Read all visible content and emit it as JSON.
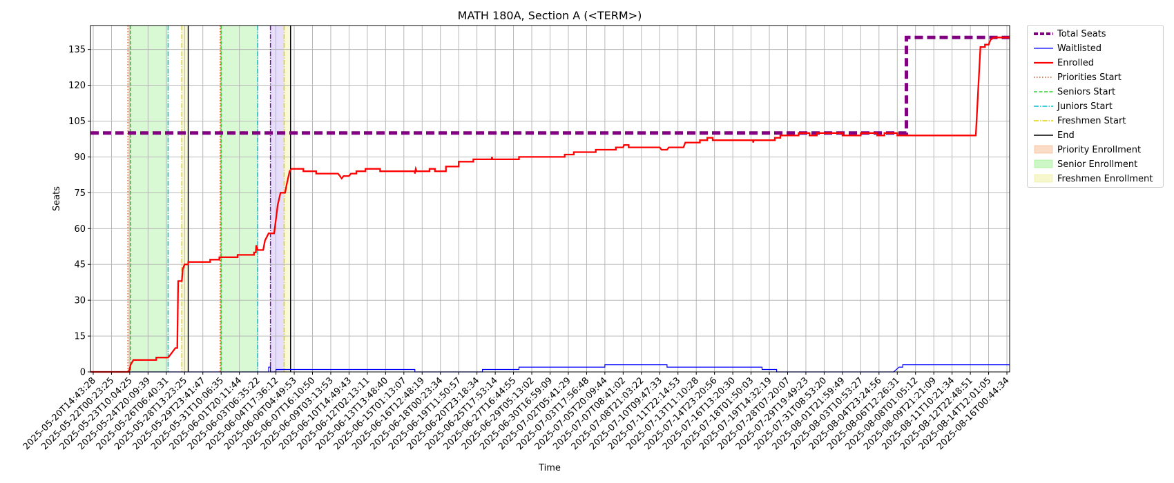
{
  "chart_data": {
    "type": "line",
    "title": "MATH 180A, Section A (<TERM>)",
    "xlabel": "Time",
    "ylabel": "Seats",
    "ylim": [
      0,
      145
    ],
    "yticks": [
      0,
      15,
      30,
      45,
      60,
      75,
      90,
      105,
      120,
      135
    ],
    "grid": true,
    "legend_position": "outside-top-right",
    "x_tick_labels": [
      "2025-05-20T14:43:28",
      "2025-05-22T00:23:25",
      "2025-05-23T10:04:25",
      "2025-05-24T20:09:39",
      "2025-05-26T06:40:31",
      "2025-05-28T13:23:25",
      "2025-05-29T23:41:47",
      "2025-05-31T10:06:35",
      "2025-06-01T20:11:44",
      "2025-06-03T06:35:22",
      "2025-06-04T17:36:12",
      "2025-06-06T04:49:53",
      "2025-06-07T16:10:50",
      "2025-06-09T03:13:53",
      "2025-06-10T14:49:43",
      "2025-06-12T02:13:11",
      "2025-06-13T13:48:40",
      "2025-06-15T01:13:07",
      "2025-06-16T12:48:19",
      "2025-06-18T00:23:34",
      "2025-06-19T11:50:57",
      "2025-06-20T23:18:34",
      "2025-06-25T17:53:14",
      "2025-06-27T16:44:55",
      "2025-06-29T05:13:02",
      "2025-06-30T16:59:09",
      "2025-07-02T05:41:29",
      "2025-07-03T17:56:48",
      "2025-07-05T20:09:44",
      "2025-07-07T08:41:02",
      "2025-07-08T21:03:22",
      "2025-07-10T09:47:33",
      "2025-07-11T22:14:53",
      "2025-07-13T11:10:28",
      "2025-07-14T23:20:56",
      "2025-07-16T13:20:30",
      "2025-07-18T01:50:03",
      "2025-07-19T14:32:19",
      "2025-07-28T07:20:07",
      "2025-07-29T19:49:23",
      "2025-07-31T08:53:20",
      "2025-08-01T21:59:49",
      "2025-08-03T10:53:27",
      "2025-08-04T23:24:56",
      "2025-08-06T12:26:31",
      "2025-08-08T01:05:12",
      "2025-08-09T21:21:09",
      "2025-08-11T10:21:34",
      "2025-08-12T22:48:51",
      "2025-08-14T12:01:05",
      "2025-08-16T00:44:34"
    ],
    "x_range_ticks": [
      -0.15,
      50.15
    ],
    "series": [
      {
        "name": "Total Seats",
        "color": "#800080",
        "style": "dashed-thick",
        "points": [
          [
            -0.15,
            100
          ],
          [
            44.5,
            100
          ],
          [
            44.5,
            140
          ],
          [
            50.15,
            140
          ]
        ]
      },
      {
        "name": "Waitlisted",
        "color": "#0000ff",
        "style": "solid-thin",
        "points": [
          [
            -0.15,
            0
          ],
          [
            9.6,
            0
          ],
          [
            9.6,
            2
          ],
          [
            9.7,
            2
          ],
          [
            9.7,
            0
          ],
          [
            10.0,
            0
          ],
          [
            10.0,
            1
          ],
          [
            17.6,
            1
          ],
          [
            17.6,
            0
          ],
          [
            21.3,
            0
          ],
          [
            21.3,
            1
          ],
          [
            23.3,
            1
          ],
          [
            23.3,
            2
          ],
          [
            28.0,
            2
          ],
          [
            28.0,
            3
          ],
          [
            31.4,
            3
          ],
          [
            31.4,
            2
          ],
          [
            36.6,
            2
          ],
          [
            36.6,
            1
          ],
          [
            37.4,
            1
          ],
          [
            37.4,
            0
          ],
          [
            43.8,
            0
          ],
          [
            44.1,
            2
          ],
          [
            44.3,
            2
          ],
          [
            44.3,
            3
          ],
          [
            50.15,
            3
          ]
        ]
      },
      {
        "name": "Enrolled",
        "color": "#ff0000",
        "style": "solid-thick",
        "points": [
          [
            -0.15,
            0
          ],
          [
            1.95,
            0
          ],
          [
            2.05,
            3
          ],
          [
            2.2,
            5
          ],
          [
            3.45,
            5
          ],
          [
            3.45,
            6
          ],
          [
            4.1,
            6
          ],
          [
            4.3,
            8
          ],
          [
            4.5,
            10
          ],
          [
            4.6,
            10
          ],
          [
            4.65,
            38
          ],
          [
            4.85,
            38
          ],
          [
            4.9,
            43
          ],
          [
            5.0,
            45
          ],
          [
            5.2,
            45
          ],
          [
            5.2,
            46
          ],
          [
            6.4,
            46
          ],
          [
            6.4,
            47
          ],
          [
            6.9,
            47
          ],
          [
            6.9,
            48
          ],
          [
            7.9,
            48
          ],
          [
            7.9,
            49
          ],
          [
            8.8,
            49
          ],
          [
            8.8,
            50
          ],
          [
            8.9,
            50
          ],
          [
            8.92,
            53
          ],
          [
            9.0,
            51
          ],
          [
            9.3,
            51
          ],
          [
            9.4,
            55
          ],
          [
            9.6,
            58
          ],
          [
            9.9,
            58
          ],
          [
            9.95,
            61
          ],
          [
            10.1,
            70
          ],
          [
            10.25,
            75
          ],
          [
            10.5,
            75
          ],
          [
            10.6,
            79
          ],
          [
            10.75,
            84
          ],
          [
            10.85,
            85
          ],
          [
            11.5,
            85
          ],
          [
            11.5,
            84
          ],
          [
            12.2,
            84
          ],
          [
            12.2,
            83
          ],
          [
            13.4,
            83
          ],
          [
            13.5,
            82
          ],
          [
            13.6,
            81
          ],
          [
            13.7,
            82
          ],
          [
            14.0,
            82
          ],
          [
            14.1,
            83
          ],
          [
            14.4,
            83
          ],
          [
            14.4,
            84
          ],
          [
            14.9,
            84
          ],
          [
            14.9,
            85
          ],
          [
            15.7,
            85
          ],
          [
            15.7,
            84
          ],
          [
            17.6,
            84
          ],
          [
            17.6,
            83
          ],
          [
            17.65,
            85
          ],
          [
            17.7,
            84
          ],
          [
            18.4,
            84
          ],
          [
            18.4,
            85
          ],
          [
            18.7,
            85
          ],
          [
            18.7,
            84
          ],
          [
            19.3,
            84
          ],
          [
            19.3,
            86
          ],
          [
            20.0,
            86
          ],
          [
            20.0,
            88
          ],
          [
            20.8,
            88
          ],
          [
            20.8,
            89
          ],
          [
            21.8,
            89
          ],
          [
            21.82,
            90
          ],
          [
            21.85,
            89
          ],
          [
            23.3,
            89
          ],
          [
            23.3,
            90
          ],
          [
            25.8,
            90
          ],
          [
            25.8,
            91
          ],
          [
            26.3,
            91
          ],
          [
            26.3,
            92
          ],
          [
            27.5,
            92
          ],
          [
            27.5,
            93
          ],
          [
            28.6,
            93
          ],
          [
            28.6,
            94
          ],
          [
            29.0,
            94
          ],
          [
            29.05,
            95
          ],
          [
            29.3,
            95
          ],
          [
            29.3,
            94
          ],
          [
            31.0,
            94
          ],
          [
            31.1,
            93
          ],
          [
            31.4,
            93
          ],
          [
            31.5,
            94
          ],
          [
            32.3,
            94
          ],
          [
            32.4,
            96
          ],
          [
            33.2,
            96
          ],
          [
            33.2,
            97
          ],
          [
            33.6,
            97
          ],
          [
            33.6,
            98
          ],
          [
            33.9,
            98
          ],
          [
            33.9,
            97
          ],
          [
            36.1,
            97
          ],
          [
            36.12,
            96
          ],
          [
            36.15,
            97
          ],
          [
            37.3,
            97
          ],
          [
            37.3,
            98
          ],
          [
            37.6,
            98
          ],
          [
            37.6,
            99
          ],
          [
            38.6,
            99
          ],
          [
            38.6,
            100
          ],
          [
            39.2,
            100
          ],
          [
            39.2,
            99
          ],
          [
            39.6,
            99
          ],
          [
            39.6,
            100
          ],
          [
            41.0,
            100
          ],
          [
            41.0,
            99
          ],
          [
            42.0,
            99
          ],
          [
            42.0,
            100
          ],
          [
            42.9,
            100
          ],
          [
            42.9,
            99
          ],
          [
            43.3,
            99
          ],
          [
            43.3,
            100
          ],
          [
            44.0,
            100
          ],
          [
            44.0,
            99
          ],
          [
            48.3,
            99
          ],
          [
            48.55,
            136
          ],
          [
            48.8,
            136
          ],
          [
            48.8,
            137
          ],
          [
            49.0,
            137
          ],
          [
            49.1,
            139
          ],
          [
            49.3,
            140
          ],
          [
            50.15,
            140
          ]
        ]
      }
    ],
    "vertical_lines": [
      {
        "name": "Priorities Start",
        "color": "#ff4500",
        "style": "dotted",
        "x": [
          1.9,
          6.95
        ]
      },
      {
        "name": "Seniors Start",
        "color": "#32cd32",
        "style": "dashed",
        "x": [
          2.05,
          7.0
        ]
      },
      {
        "name": "Juniors Start",
        "color": "#00bcd4",
        "style": "dashdot",
        "x": [
          4.1,
          9.0
        ]
      },
      {
        "name": "Freshmen Start",
        "color": "#e0d000",
        "style": "dashdot",
        "x": [
          4.85,
          10.45
        ]
      },
      {
        "name": "End",
        "color": "#000000",
        "style": "solid",
        "x": [
          5.2,
          10.8
        ]
      }
    ],
    "shaded_regions": [
      {
        "name": "Priority Enrollment",
        "color": "#f4b183",
        "ranges": [
          [
            1.9,
            2.05
          ],
          [
            6.95,
            7.0
          ]
        ]
      },
      {
        "name": "Senior Enrollment",
        "color": "#90ee80",
        "ranges": [
          [
            2.05,
            4.1
          ],
          [
            7.0,
            9.0
          ]
        ]
      },
      {
        "name": "Freshmen Enrollment",
        "color": "#eeee90",
        "ranges": [
          [
            4.85,
            5.2
          ],
          [
            10.45,
            10.8
          ]
        ]
      },
      {
        "name": "",
        "color": "#b7a0f0",
        "ranges": [
          [
            9.7,
            10.45
          ]
        ]
      }
    ],
    "extra_vertical_lines": [
      {
        "color": "#6a0dad",
        "style": "dashdot",
        "x": 9.7
      }
    ]
  },
  "legend": {
    "items": [
      {
        "label": "Total Seats",
        "kind": "line",
        "color": "#800080",
        "dash": "6,3",
        "width": 4
      },
      {
        "label": "Waitlisted",
        "kind": "line",
        "color": "#0000ff",
        "dash": "",
        "width": 1.3
      },
      {
        "label": "Enrolled",
        "kind": "line",
        "color": "#ff0000",
        "dash": "",
        "width": 2.2
      },
      {
        "label": "Priorities Start",
        "kind": "line",
        "color": "#ff4500",
        "dash": "1.5,2.5",
        "width": 1.5
      },
      {
        "label": "Seniors Start",
        "kind": "line",
        "color": "#32cd32",
        "dash": "5,2.5",
        "width": 1.5
      },
      {
        "label": "Juniors Start",
        "kind": "line",
        "color": "#00bcd4",
        "dash": "7,2,1.5,2",
        "width": 1.5
      },
      {
        "label": "Freshmen Start",
        "kind": "line",
        "color": "#e0d000",
        "dash": "7,2,1.5,2",
        "width": 1.5
      },
      {
        "label": "End",
        "kind": "line",
        "color": "#000000",
        "dash": "",
        "width": 1.5
      },
      {
        "label": "Priority Enrollment",
        "kind": "patch",
        "color": "#f4b183"
      },
      {
        "label": "Senior Enrollment",
        "kind": "patch",
        "color": "#90ee80"
      },
      {
        "label": "Freshmen Enrollment",
        "kind": "patch",
        "color": "#eeee90"
      }
    ]
  }
}
